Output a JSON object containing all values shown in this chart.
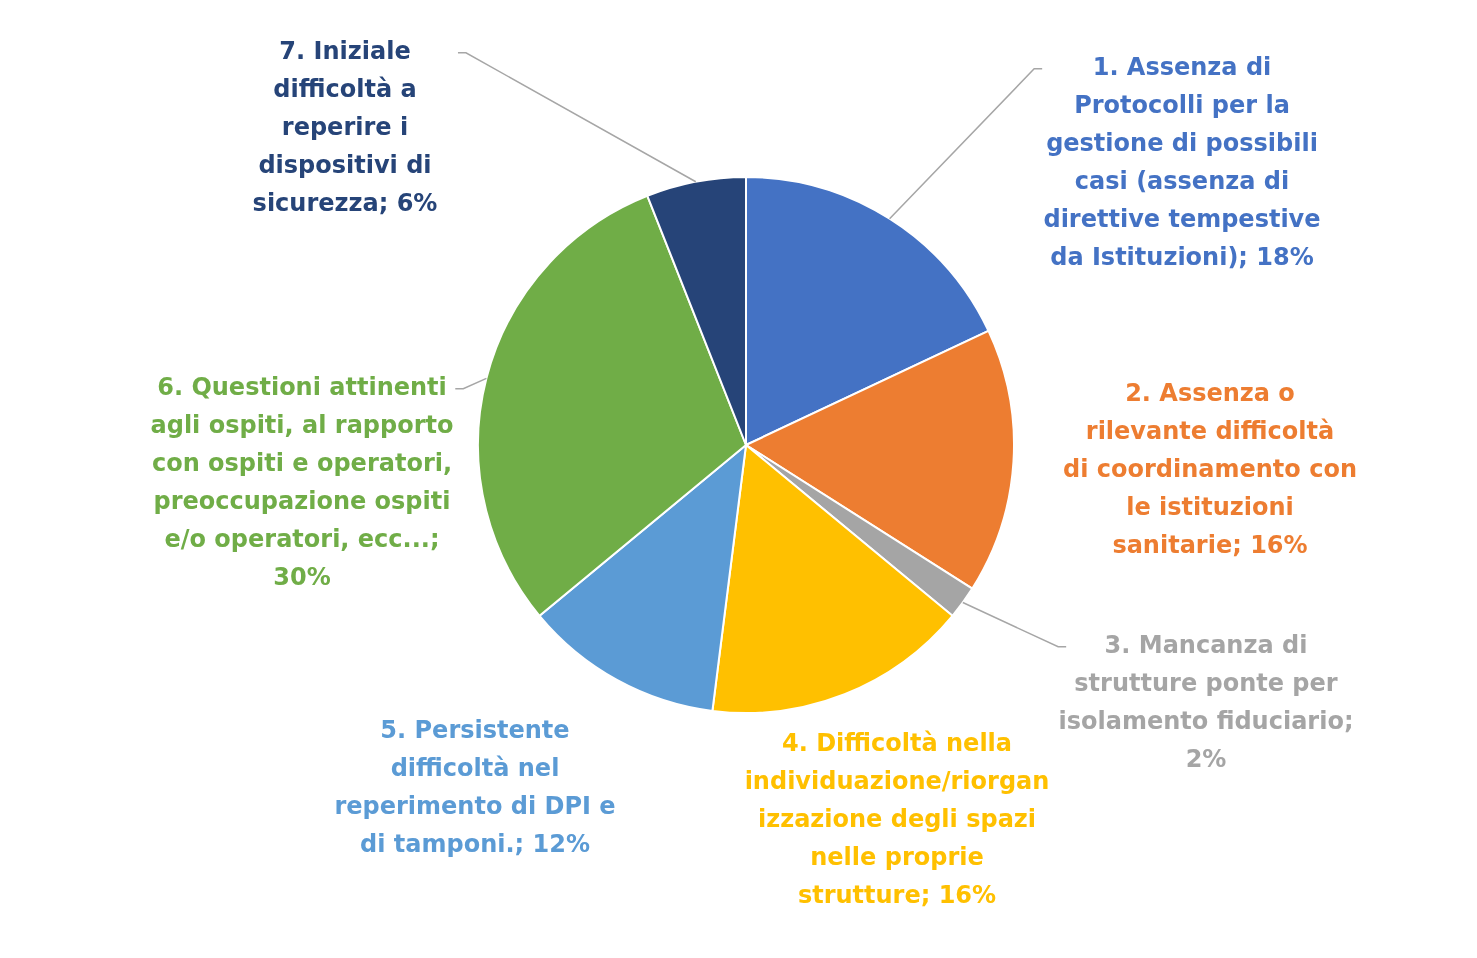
{
  "chart_data": {
    "type": "pie",
    "categories": [
      "1. Assenza di Protocolli  per la gestione di possibili casi (assenza di direttive tempestive da Istituzioni)",
      "2. Assenza o rilevante difficoltà di coordinamento con le istituzioni sanitarie",
      "3. Mancanza di strutture ponte per isolamento fiduciario",
      "4. Difficoltà nella individuazione/riorganizzazione degli spazi nelle proprie strutture",
      "5. Persistente difficoltà nel reperimento di DPI e di tamponi.",
      "6. Questioni attinenti agli ospiti, al rapporto con ospiti e operatori, preoccupazione ospiti e/o operatori, ecc...",
      "7. Iniziale difficoltà a reperire i dispositivi di sicurezza"
    ],
    "values": [
      18,
      16,
      2,
      16,
      12,
      30,
      6
    ],
    "value_labels": [
      "; 18%",
      "; 16%",
      "; 2%",
      "; 16%",
      "; 12%",
      "; 30%",
      "; 6%"
    ],
    "colors": [
      "#4472c4",
      "#ed7d31",
      "#a5a5a5",
      "#ffc000",
      "#5b9bd5",
      "#70ad47",
      "#264478"
    ],
    "legend": false
  }
}
